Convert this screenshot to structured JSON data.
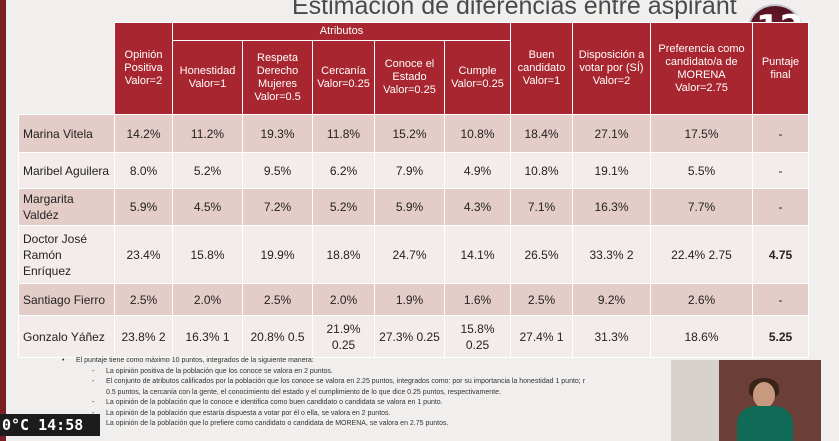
{
  "title": "Estimación de diferencias entre aspirant",
  "logo_text": "12",
  "ticker": "0°C  14:58",
  "table": {
    "group_header": "Atributos",
    "columns": [
      "Opinión Positiva Valor=2",
      "Honestidad Valor=1",
      "Respeta Derecho Mujeres Valor=0.5",
      "Cercanía Valor=0.25",
      "Conoce el Estado Valor=0.25",
      "Cumple Valor=0.25",
      "Buen candidato Valor=1",
      "Disposición a votar por (SÍ) Valor=2",
      "Preferencia como candidato/a de MORENA Valor=2.75",
      "Puntaje final"
    ],
    "rows": [
      {
        "name": "Marina Vitela",
        "cells": [
          "14.2%",
          "11.2%",
          "19.3%",
          "11.8%",
          "15.2%",
          "10.8%",
          "18.4%",
          "27.1%",
          "17.5%",
          "-"
        ]
      },
      {
        "name": "Maribel Aguilera",
        "cells": [
          "8.0%",
          "5.2%",
          "9.5%",
          "6.2%",
          "7.9%",
          "4.9%",
          "10.8%",
          "19.1%",
          "5.5%",
          "-"
        ]
      },
      {
        "name": "Margarita Valdéz",
        "cells": [
          "5.9%",
          "4.5%",
          "7.2%",
          "5.2%",
          "5.9%",
          "4.3%",
          "7.1%",
          "16.3%",
          "7.7%",
          "-"
        ]
      },
      {
        "name": "Doctor José Ramón Enríquez",
        "cells": [
          "23.4%",
          "15.8%",
          "19.9%",
          "18.8%",
          "24.7%",
          "14.1%",
          "26.5%",
          "33.3% 2",
          "22.4% 2.75",
          "4.75"
        ]
      },
      {
        "name": "Santiago Fierro",
        "cells": [
          "2.5%",
          "2.0%",
          "2.5%",
          "2.0%",
          "1.9%",
          "1.6%",
          "2.5%",
          "9.2%",
          "2.6%",
          "-"
        ]
      },
      {
        "name": "Gonzalo Yáñez",
        "cells": [
          "23.8% 2",
          "16.3% 1",
          "20.8% 0.5",
          "21.9% 0.25",
          "27.3% 0.25",
          "15.8% 0.25",
          "27.4% 1",
          "31.3%",
          "18.6%",
          "5.25"
        ]
      }
    ]
  },
  "notes": {
    "main": "El puntaje tiene como máximo 10 puntos, integrados de la siguiente manera:",
    "items": [
      "La opinión positiva de la población que los conoce se valora en 2 puntos.",
      "El conjunto de atributos calificados por la población que los conoce se valora en 2.25 puntos, integrados como: por su importancia la honestidad 1 punto; r",
      "0.5 puntos, la cercanía con la gente, el conocimiento del estado y el cumplimiento de lo que dice 0.25 puntos, respectivamente.",
      "La opinión de la población que lo conoce e identifica como buen candidato o candidata se valora en 1 punto.",
      "La opinión de la población que estaría dispuesta a votar por él o ella, se valora en 2 puntos.",
      "La opinión de la población que lo prefiere como candidato o candidata de MORENA, se valora en 2.75 puntos."
    ]
  }
}
